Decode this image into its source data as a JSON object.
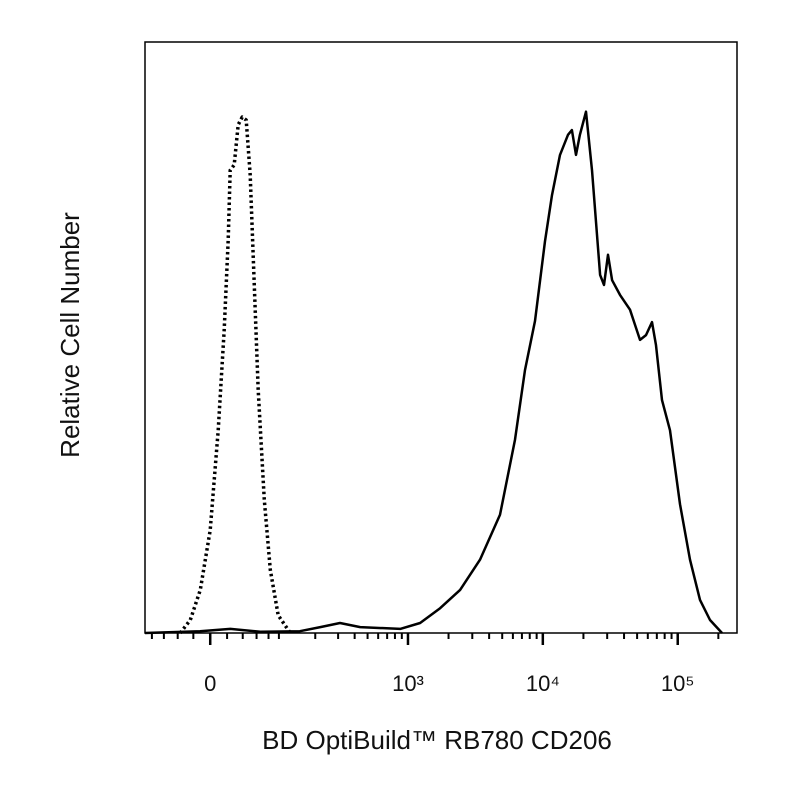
{
  "chart_data": {
    "type": "histogram-overlay",
    "xlabel": "BD OptiBuild™ RB780 CD206",
    "ylabel": "Relative Cell Number",
    "xscale": "asinh",
    "xscale_width": 68.5,
    "xlim": [
      -93,
      275000
    ],
    "xticks": [
      0,
      {
        "value": 1000,
        "label": "10³"
      },
      {
        "value": 10000,
        "label": "10⁴"
      },
      {
        "value": 100000,
        "label": "10⁵"
      }
    ],
    "xminorticks": [
      -80,
      -60,
      -40,
      -20,
      20,
      40,
      60,
      80,
      100,
      200,
      300,
      400,
      500,
      600,
      700,
      800,
      900,
      2000,
      3000,
      4000,
      5000,
      6000,
      7000,
      8000,
      9000,
      20000,
      30000,
      40000,
      50000,
      60000,
      70000,
      80000,
      90000,
      200000
    ],
    "ylim": [
      0,
      100
    ],
    "series": [
      {
        "color": "#000000",
        "dash": "dotted",
        "x": [
          -36.6,
          -23.8,
          -11.7,
          0,
          9.4,
          16.5,
          21.4,
          23.8,
          28.8,
          34.0,
          39.3,
          44.8,
          50.4,
          56.3,
          62.6,
          72.6,
          83.2,
          98.6,
          125.6
        ],
        "values": [
          0,
          2.2,
          7.3,
          17.4,
          34.3,
          51.3,
          66.5,
          78.3,
          79.2,
          86,
          87.3,
          86.8,
          77.5,
          59.7,
          41.1,
          22.5,
          10.7,
          3.0,
          0
        ]
      },
      {
        "color": "#000000",
        "dash": "solid",
        "x": [
          -93,
          -12,
          24,
          66,
          151,
          219,
          310,
          440,
          875,
          1231,
          1731,
          2435,
          3424,
          4816,
          6220,
          7378,
          8750,
          10380,
          11690,
          13400,
          15360,
          16440,
          17610,
          18840,
          20880,
          23140,
          26570,
          28430,
          30440,
          32600,
          37350,
          44300,
          52550,
          58220,
          64470,
          69040,
          76460,
          87660,
          103900,
          123300,
          146200,
          173400,
          212800
        ],
        "values": [
          0,
          0.3,
          0.7,
          0.2,
          0.3,
          1.0,
          1.7,
          1.0,
          0.7,
          1.7,
          4.2,
          7.3,
          12.4,
          20,
          32.7,
          44.5,
          52.8,
          66.3,
          74.1,
          80.9,
          84.3,
          85.1,
          80.9,
          84.3,
          88.2,
          78.3,
          60.6,
          58.9,
          64,
          59.7,
          57.2,
          54.7,
          49.6,
          50.4,
          52.6,
          48.7,
          39.4,
          34.3,
          21.8,
          12.4,
          5.6,
          2.2,
          0
        ]
      }
    ]
  }
}
